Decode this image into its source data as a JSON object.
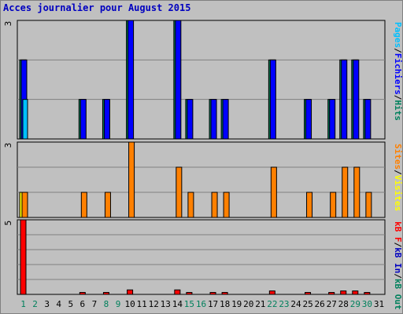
{
  "title": "Acces journalier pour August 2015",
  "chart_data": [
    {
      "type": "bar",
      "panel": "pages-files-hits",
      "x": [
        1,
        2,
        3,
        4,
        5,
        6,
        7,
        8,
        9,
        10,
        11,
        12,
        13,
        14,
        15,
        16,
        17,
        18,
        19,
        20,
        21,
        22,
        23,
        24,
        25,
        26,
        27,
        28,
        29,
        30,
        31
      ],
      "weekend_days": [
        1,
        8,
        15,
        22,
        29,
        2,
        9,
        16,
        23,
        30
      ],
      "ylim": [
        0,
        3
      ],
      "ytick_label": "3",
      "series": [
        {
          "name": "Hits",
          "color": "#00805c",
          "values": [
            2,
            0,
            0,
            0,
            0,
            1,
            0,
            1,
            0,
            3,
            0,
            0,
            0,
            3,
            1,
            0,
            1,
            1,
            0,
            0,
            0,
            2,
            0,
            0,
            1,
            0,
            1,
            2,
            2,
            1,
            0
          ]
        },
        {
          "name": "Fichiers",
          "color": "#0000ff",
          "values": [
            2,
            0,
            0,
            0,
            0,
            1,
            0,
            1,
            0,
            3,
            0,
            0,
            0,
            3,
            1,
            0,
            1,
            1,
            0,
            0,
            0,
            2,
            0,
            0,
            1,
            0,
            1,
            2,
            2,
            1,
            0
          ]
        },
        {
          "name": "Pages",
          "color": "#00c0ff",
          "values": [
            1,
            0,
            0,
            0,
            0,
            0,
            0,
            0,
            0,
            0,
            0,
            0,
            0,
            0,
            0,
            0,
            0,
            0,
            0,
            0,
            0,
            0,
            0,
            0,
            0,
            0,
            0,
            0,
            0,
            0,
            0
          ]
        }
      ],
      "side_label": [
        {
          "text": "Pages",
          "color": "#00c0ff"
        },
        {
          "text": "/",
          "color": "#000000"
        },
        {
          "text": "Fichiers",
          "color": "#0000ff"
        },
        {
          "text": "/",
          "color": "#000000"
        },
        {
          "text": "Hits",
          "color": "#00805c"
        }
      ]
    },
    {
      "type": "bar",
      "panel": "visits-sites",
      "ylim": [
        0,
        3
      ],
      "ytick_label": "3",
      "series": [
        {
          "name": "Visites",
          "color": "#ffff00",
          "values": [
            1,
            0,
            0,
            0,
            0,
            0,
            0,
            0,
            0,
            0,
            0,
            0,
            0,
            0,
            0,
            0,
            0,
            0,
            0,
            0,
            0,
            0,
            0,
            0,
            0,
            0,
            0,
            0,
            0,
            0,
            0
          ]
        },
        {
          "name": "Sites",
          "color": "#ff8000",
          "values": [
            1,
            0,
            0,
            0,
            0,
            1,
            0,
            1,
            0,
            3,
            0,
            0,
            0,
            2,
            1,
            0,
            1,
            1,
            0,
            0,
            0,
            2,
            0,
            0,
            1,
            0,
            1,
            2,
            2,
            1,
            0
          ]
        }
      ],
      "side_label": [
        {
          "text": "Sites",
          "color": "#ff8000"
        },
        {
          "text": "/",
          "color": "#000000"
        },
        {
          "text": "Visites",
          "color": "#ffff00"
        }
      ]
    },
    {
      "type": "bar",
      "panel": "kbytes",
      "ylim": [
        0,
        5
      ],
      "ytick_label": "5",
      "series": [
        {
          "name": "kB F",
          "color": "#ff0000",
          "values": [
            5,
            0,
            0,
            0,
            0,
            0.13,
            0,
            0.13,
            0,
            0.3,
            0,
            0,
            0,
            0.3,
            0.13,
            0,
            0.13,
            0.13,
            0,
            0,
            0,
            0.23,
            0,
            0,
            0.13,
            0,
            0.13,
            0.23,
            0.23,
            0.13,
            0
          ]
        }
      ],
      "side_label": [
        {
          "text": "kB F",
          "color": "#ff0000"
        },
        {
          "text": "/",
          "color": "#000000"
        },
        {
          "text": "kB In",
          "color": "#0000c0"
        },
        {
          "text": "/",
          "color": "#000000"
        },
        {
          "text": "kB Out",
          "color": "#00805c"
        }
      ]
    }
  ],
  "x_tick_colors": {
    "weekend": "#00805c",
    "weekday": "#000000"
  }
}
